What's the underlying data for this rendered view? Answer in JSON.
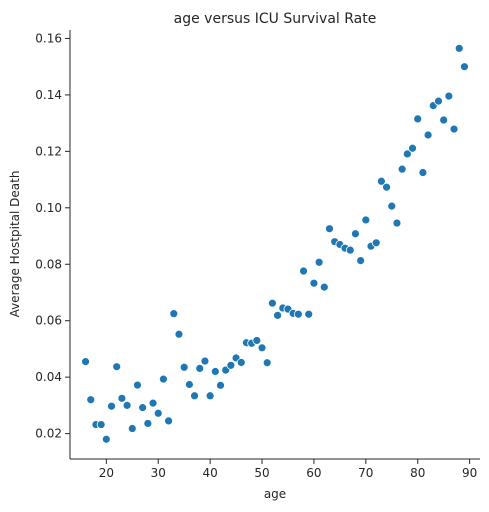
{
  "chart_data": {
    "type": "scatter",
    "title": "age versus ICU Survival Rate",
    "xlabel": "age",
    "ylabel": "Average Hostpital Death",
    "xlim": [
      13,
      92
    ],
    "ylim": [
      0.011,
      0.163
    ],
    "xticks": [
      20,
      30,
      40,
      50,
      60,
      70,
      80,
      90
    ],
    "yticks": [
      0.02,
      0.04,
      0.06,
      0.08,
      0.1,
      0.12,
      0.14,
      0.16
    ],
    "ytick_labels": [
      "0.02",
      "0.04",
      "0.06",
      "0.08",
      "0.10",
      "0.12",
      "0.14",
      "0.16"
    ],
    "grid": false,
    "marker_color": "#1f77b4",
    "x": [
      16,
      17,
      18,
      19,
      20,
      21,
      22,
      23,
      24,
      25,
      26,
      27,
      28,
      29,
      30,
      31,
      32,
      33,
      34,
      35,
      36,
      37,
      38,
      39,
      40,
      41,
      42,
      43,
      44,
      45,
      46,
      47,
      48,
      49,
      50,
      51,
      52,
      53,
      54,
      55,
      56,
      57,
      58,
      59,
      60,
      61,
      62,
      63,
      64,
      65,
      66,
      67,
      68,
      69,
      70,
      71,
      72,
      73,
      74,
      75,
      76,
      77,
      78,
      79,
      80,
      81,
      82,
      83,
      84,
      85,
      86,
      87,
      88,
      89
    ],
    "y": [
      0.0455,
      0.032,
      0.0232,
      0.0232,
      0.018,
      0.0297,
      0.0437,
      0.0325,
      0.03,
      0.0218,
      0.0372,
      0.0292,
      0.0236,
      0.0308,
      0.0272,
      0.0393,
      0.0245,
      0.0625,
      0.0552,
      0.0435,
      0.0374,
      0.0334,
      0.0431,
      0.0457,
      0.0334,
      0.042,
      0.0371,
      0.0425,
      0.0442,
      0.0468,
      0.0452,
      0.0522,
      0.052,
      0.053,
      0.0504,
      0.0451,
      0.0662,
      0.0619,
      0.0645,
      0.0641,
      0.0626,
      0.0623,
      0.0776,
      0.0623,
      0.0733,
      0.0807,
      0.0719,
      0.0926,
      0.088,
      0.087,
      0.0857,
      0.085,
      0.0908,
      0.0813,
      0.0957,
      0.0864,
      0.0876,
      0.1094,
      0.1073,
      0.1006,
      0.0946,
      0.1137,
      0.1191,
      0.1211,
      0.1315,
      0.1125,
      0.1258,
      0.1362,
      0.1378,
      0.1311,
      0.1396,
      0.1279,
      0.1565,
      0.15
    ]
  }
}
